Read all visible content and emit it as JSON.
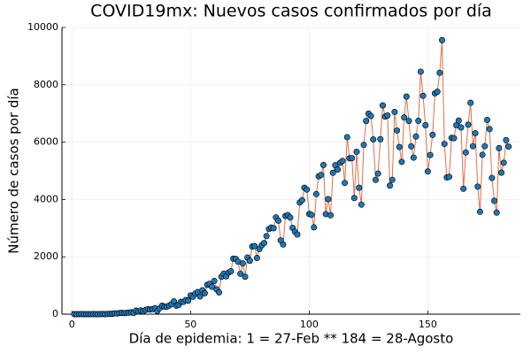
{
  "chart_data": {
    "type": "line",
    "title": "COVID19mx: Nuevos casos confirmados por día",
    "x_label": "Día de epidemia: 1 = 27-Feb ** 184 = 28-Agosto",
    "y_label": "Número de casos por día",
    "x": [
      1,
      2,
      3,
      4,
      5,
      6,
      7,
      8,
      9,
      10,
      11,
      12,
      13,
      14,
      15,
      16,
      17,
      18,
      19,
      20,
      21,
      22,
      23,
      24,
      25,
      26,
      27,
      28,
      29,
      30,
      31,
      32,
      33,
      34,
      35,
      36,
      37,
      38,
      39,
      40,
      41,
      42,
      43,
      44,
      45,
      46,
      47,
      48,
      49,
      50,
      51,
      52,
      53,
      54,
      55,
      56,
      57,
      58,
      59,
      60,
      61,
      62,
      63,
      64,
      65,
      66,
      67,
      68,
      69,
      70,
      71,
      72,
      73,
      74,
      75,
      76,
      77,
      78,
      79,
      80,
      81,
      82,
      83,
      84,
      85,
      86,
      87,
      88,
      89,
      90,
      91,
      92,
      93,
      94,
      95,
      96,
      97,
      98,
      99,
      100,
      101,
      102,
      103,
      104,
      105,
      106,
      107,
      108,
      109,
      110,
      111,
      112,
      113,
      114,
      115,
      116,
      117,
      118,
      119,
      120,
      121,
      122,
      123,
      124,
      125,
      126,
      127,
      128,
      129,
      130,
      131,
      132,
      133,
      134,
      135,
      136,
      137,
      138,
      139,
      140,
      141,
      142,
      143,
      144,
      145,
      146,
      147,
      148,
      149,
      150,
      151,
      152,
      153,
      154,
      155,
      156,
      157,
      158,
      159,
      160,
      161,
      162,
      163,
      164,
      165,
      166,
      167,
      168,
      169,
      170,
      171,
      172,
      173,
      174,
      175,
      176,
      177,
      178,
      179,
      180,
      181,
      182,
      183,
      184
    ],
    "values": [
      1,
      0,
      1,
      2,
      0,
      1,
      0,
      0,
      2,
      1,
      0,
      3,
      4,
      1,
      6,
      10,
      12,
      29,
      25,
      39,
      46,
      36,
      48,
      53,
      65,
      42,
      122,
      95,
      130,
      104,
      145,
      172,
      163,
      178,
      207,
      113,
      206,
      296,
      261,
      260,
      300,
      353,
      446,
      297,
      329,
      428,
      430,
      493,
      471,
      651,
      607,
      719,
      771,
      616,
      835,
      729,
      1023,
      1057,
      955,
      1160,
      864,
      760,
      1305,
      1411,
      1320,
      1451,
      1498,
      1937,
      1925,
      1830,
      1410,
      1770,
      1305,
      1976,
      1863,
      2362,
      2375,
      1960,
      2270,
      2400,
      2480,
      2722,
      2969,
      3020,
      2998,
      3377,
      3261,
      2575,
      2430,
      3427,
      3455,
      3370,
      3011,
      2873,
      2777,
      3891,
      3973,
      4410,
      4346,
      3494,
      3463,
      3027,
      4188,
      4808,
      4852,
      5199,
      3489,
      4013,
      3448,
      4930,
      5195,
      5046,
      5276,
      5343,
      4577,
      6174,
      5437,
      5439,
      4050,
      5662,
      4410,
      3821,
      5901,
      6740,
      6995,
      6914,
      6094,
      4683,
      4902,
      6104,
      7280,
      6891,
      6930,
      4482,
      4685,
      7051,
      6406,
      5830,
      5311,
      6862,
      7589,
      6741,
      5852,
      5461,
      6197,
      6742,
      8458,
      7615,
      6590,
      4976,
      5552,
      6253,
      7700,
      7759,
      8417,
      9556,
      5939,
      4767,
      4790,
      6148,
      6139,
      6590,
      6751,
      6513,
      4376,
      5638,
      6609,
      7371,
      5858,
      6313,
      4448,
      3571,
      5558,
      5858,
      6776,
      6454,
      4751,
      3954,
      3541,
      5792,
      4935,
      5281,
      6068,
      5844
    ],
    "line_color": "#e26f46",
    "marker_color": "#1f77b4",
    "markers": true,
    "xlim": [
      -4.2,
      189
    ],
    "xticks": [
      0,
      50,
      100,
      150
    ],
    "ylim": [
      0,
      10000
    ],
    "yticks": [
      0,
      2000,
      4000,
      6000,
      8000,
      10000
    ],
    "grid": true
  }
}
